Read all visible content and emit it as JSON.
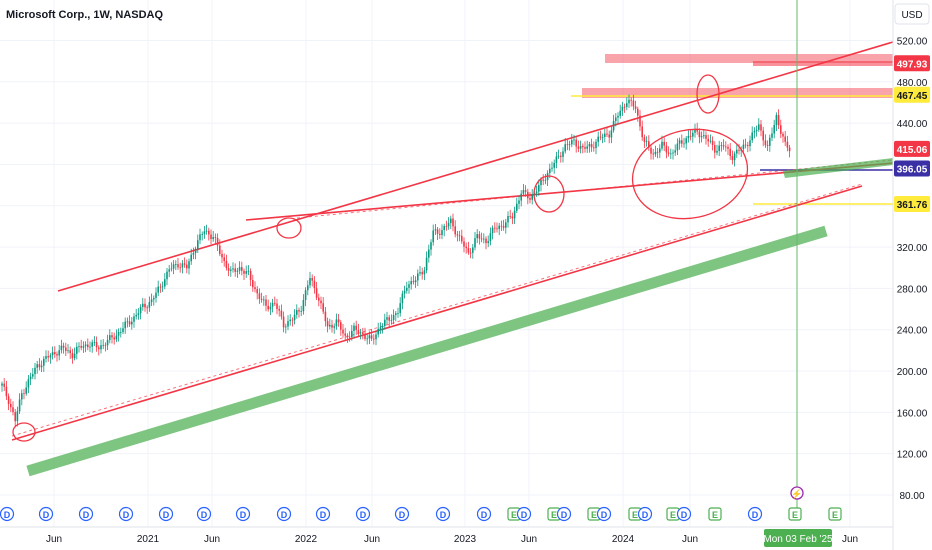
{
  "header": {
    "title": "Microsoft Corp., 1W, NASDAQ"
  },
  "currency": "USD",
  "chart_data": {
    "type": "candlestick",
    "title": "Microsoft Corp., 1W, NASDAQ",
    "ylabel": "USD",
    "ylim": [
      80,
      530
    ],
    "y_ticks": [
      "80.00",
      "120.00",
      "160.00",
      "200.00",
      "240.00",
      "280.00",
      "320.00",
      "360.00",
      "400.00",
      "440.00",
      "480.00",
      "520.00"
    ],
    "x_ticks": [
      "Jun",
      "2021",
      "Jun",
      "2022",
      "Jun",
      "2023",
      "Jun",
      "2024",
      "Jun",
      "Jun"
    ],
    "price_labels": [
      {
        "value": 497.93,
        "text": "497.93",
        "bg": "#f23645",
        "fg": "#ffffff"
      },
      {
        "value": 467.45,
        "text": "467.45",
        "bg": "#ffeb3b",
        "fg": "#131722"
      },
      {
        "value": 415.06,
        "text": "415.06",
        "bg": "#f23645",
        "fg": "#ffffff"
      },
      {
        "value": 396.05,
        "text": "396.05",
        "bg": "#3a2fa5",
        "fg": "#ffffff"
      },
      {
        "value": 361.76,
        "text": "361.76",
        "bg": "#ffeb3b",
        "fg": "#131722"
      }
    ],
    "crosshair_date": "Mon 03 Feb '25",
    "event_markers": [
      "D",
      "D",
      "D",
      "D",
      "D",
      "D",
      "D",
      "D",
      "D",
      "D",
      "D",
      "D",
      "E",
      "D",
      "E",
      "D",
      "E",
      "D",
      "E",
      "D",
      "D",
      "E",
      "D",
      "E",
      "D",
      "E",
      "E"
    ],
    "weekly_close_anchors": [
      [
        0,
        186
      ],
      [
        3,
        172
      ],
      [
        6,
        152
      ],
      [
        9,
        178
      ],
      [
        12,
        190
      ],
      [
        16,
        205
      ],
      [
        20,
        212
      ],
      [
        24,
        218
      ],
      [
        28,
        222
      ],
      [
        32,
        216
      ],
      [
        36,
        224
      ],
      [
        40,
        226
      ],
      [
        44,
        223
      ],
      [
        48,
        229
      ],
      [
        52,
        235
      ],
      [
        56,
        244
      ],
      [
        60,
        252
      ],
      [
        64,
        262
      ],
      [
        68,
        268
      ],
      [
        72,
        282
      ],
      [
        76,
        298
      ],
      [
        80,
        304
      ],
      [
        84,
        300
      ],
      [
        88,
        322
      ],
      [
        92,
        336
      ],
      [
        96,
        330
      ],
      [
        100,
        310
      ],
      [
        104,
        295
      ],
      [
        108,
        300
      ],
      [
        112,
        293
      ],
      [
        116,
        275
      ],
      [
        120,
        262
      ],
      [
        124,
        266
      ],
      [
        128,
        245
      ],
      [
        132,
        250
      ],
      [
        136,
        262
      ],
      [
        140,
        290
      ],
      [
        144,
        270
      ],
      [
        148,
        242
      ],
      [
        152,
        248
      ],
      [
        156,
        233
      ],
      [
        160,
        240
      ],
      [
        164,
        236
      ],
      [
        168,
        229
      ],
      [
        172,
        244
      ],
      [
        176,
        250
      ],
      [
        180,
        258
      ],
      [
        184,
        284
      ],
      [
        188,
        288
      ],
      [
        192,
        300
      ],
      [
        196,
        334
      ],
      [
        200,
        336
      ],
      [
        204,
        345
      ],
      [
        208,
        328
      ],
      [
        212,
        314
      ],
      [
        216,
        330
      ],
      [
        220,
        326
      ],
      [
        224,
        338
      ],
      [
        228,
        342
      ],
      [
        232,
        350
      ],
      [
        236,
        373
      ],
      [
        240,
        368
      ],
      [
        244,
        378
      ],
      [
        248,
        392
      ],
      [
        252,
        404
      ],
      [
        256,
        418
      ],
      [
        260,
        422
      ],
      [
        264,
        415
      ],
      [
        268,
        418
      ],
      [
        272,
        426
      ],
      [
        276,
        430
      ],
      [
        280,
        448
      ],
      [
        284,
        462
      ],
      [
        288,
        455
      ],
      [
        292,
        421
      ],
      [
        296,
        410
      ],
      [
        300,
        418
      ],
      [
        304,
        410
      ],
      [
        308,
        420
      ],
      [
        312,
        427
      ],
      [
        316,
        432
      ],
      [
        320,
        425
      ],
      [
        324,
        415
      ],
      [
        328,
        418
      ],
      [
        332,
        408
      ],
      [
        336,
        415
      ],
      [
        340,
        424
      ],
      [
        344,
        438
      ],
      [
        348,
        415
      ],
      [
        352,
        447
      ],
      [
        356,
        418
      ],
      [
        358,
        415
      ]
    ],
    "drawings": [
      {
        "kind": "trendline",
        "color": "#f23645",
        "from": [
          "~2020-07",
          277
        ],
        "to": [
          "~2025-06",
          518
        ]
      },
      {
        "kind": "trendline",
        "color": "#f23645",
        "from": [
          "~2021-08",
          346
        ],
        "to": [
          "~2025-06",
          400
        ]
      },
      {
        "kind": "trendline",
        "color": "#f23645",
        "from": [
          "~2020-03",
          135
        ],
        "to": [
          "~2025-05",
          374
        ]
      },
      {
        "kind": "trendline",
        "color": "#66bb6a",
        "from": [
          "~2020-03",
          100
        ],
        "to": [
          "~2025-04",
          332
        ]
      },
      {
        "kind": "zone",
        "color": "#f23645",
        "value_range": [
          496,
          503
        ]
      },
      {
        "kind": "zone",
        "color": "#f23645",
        "value_range": [
          465,
          472
        ]
      }
    ]
  }
}
